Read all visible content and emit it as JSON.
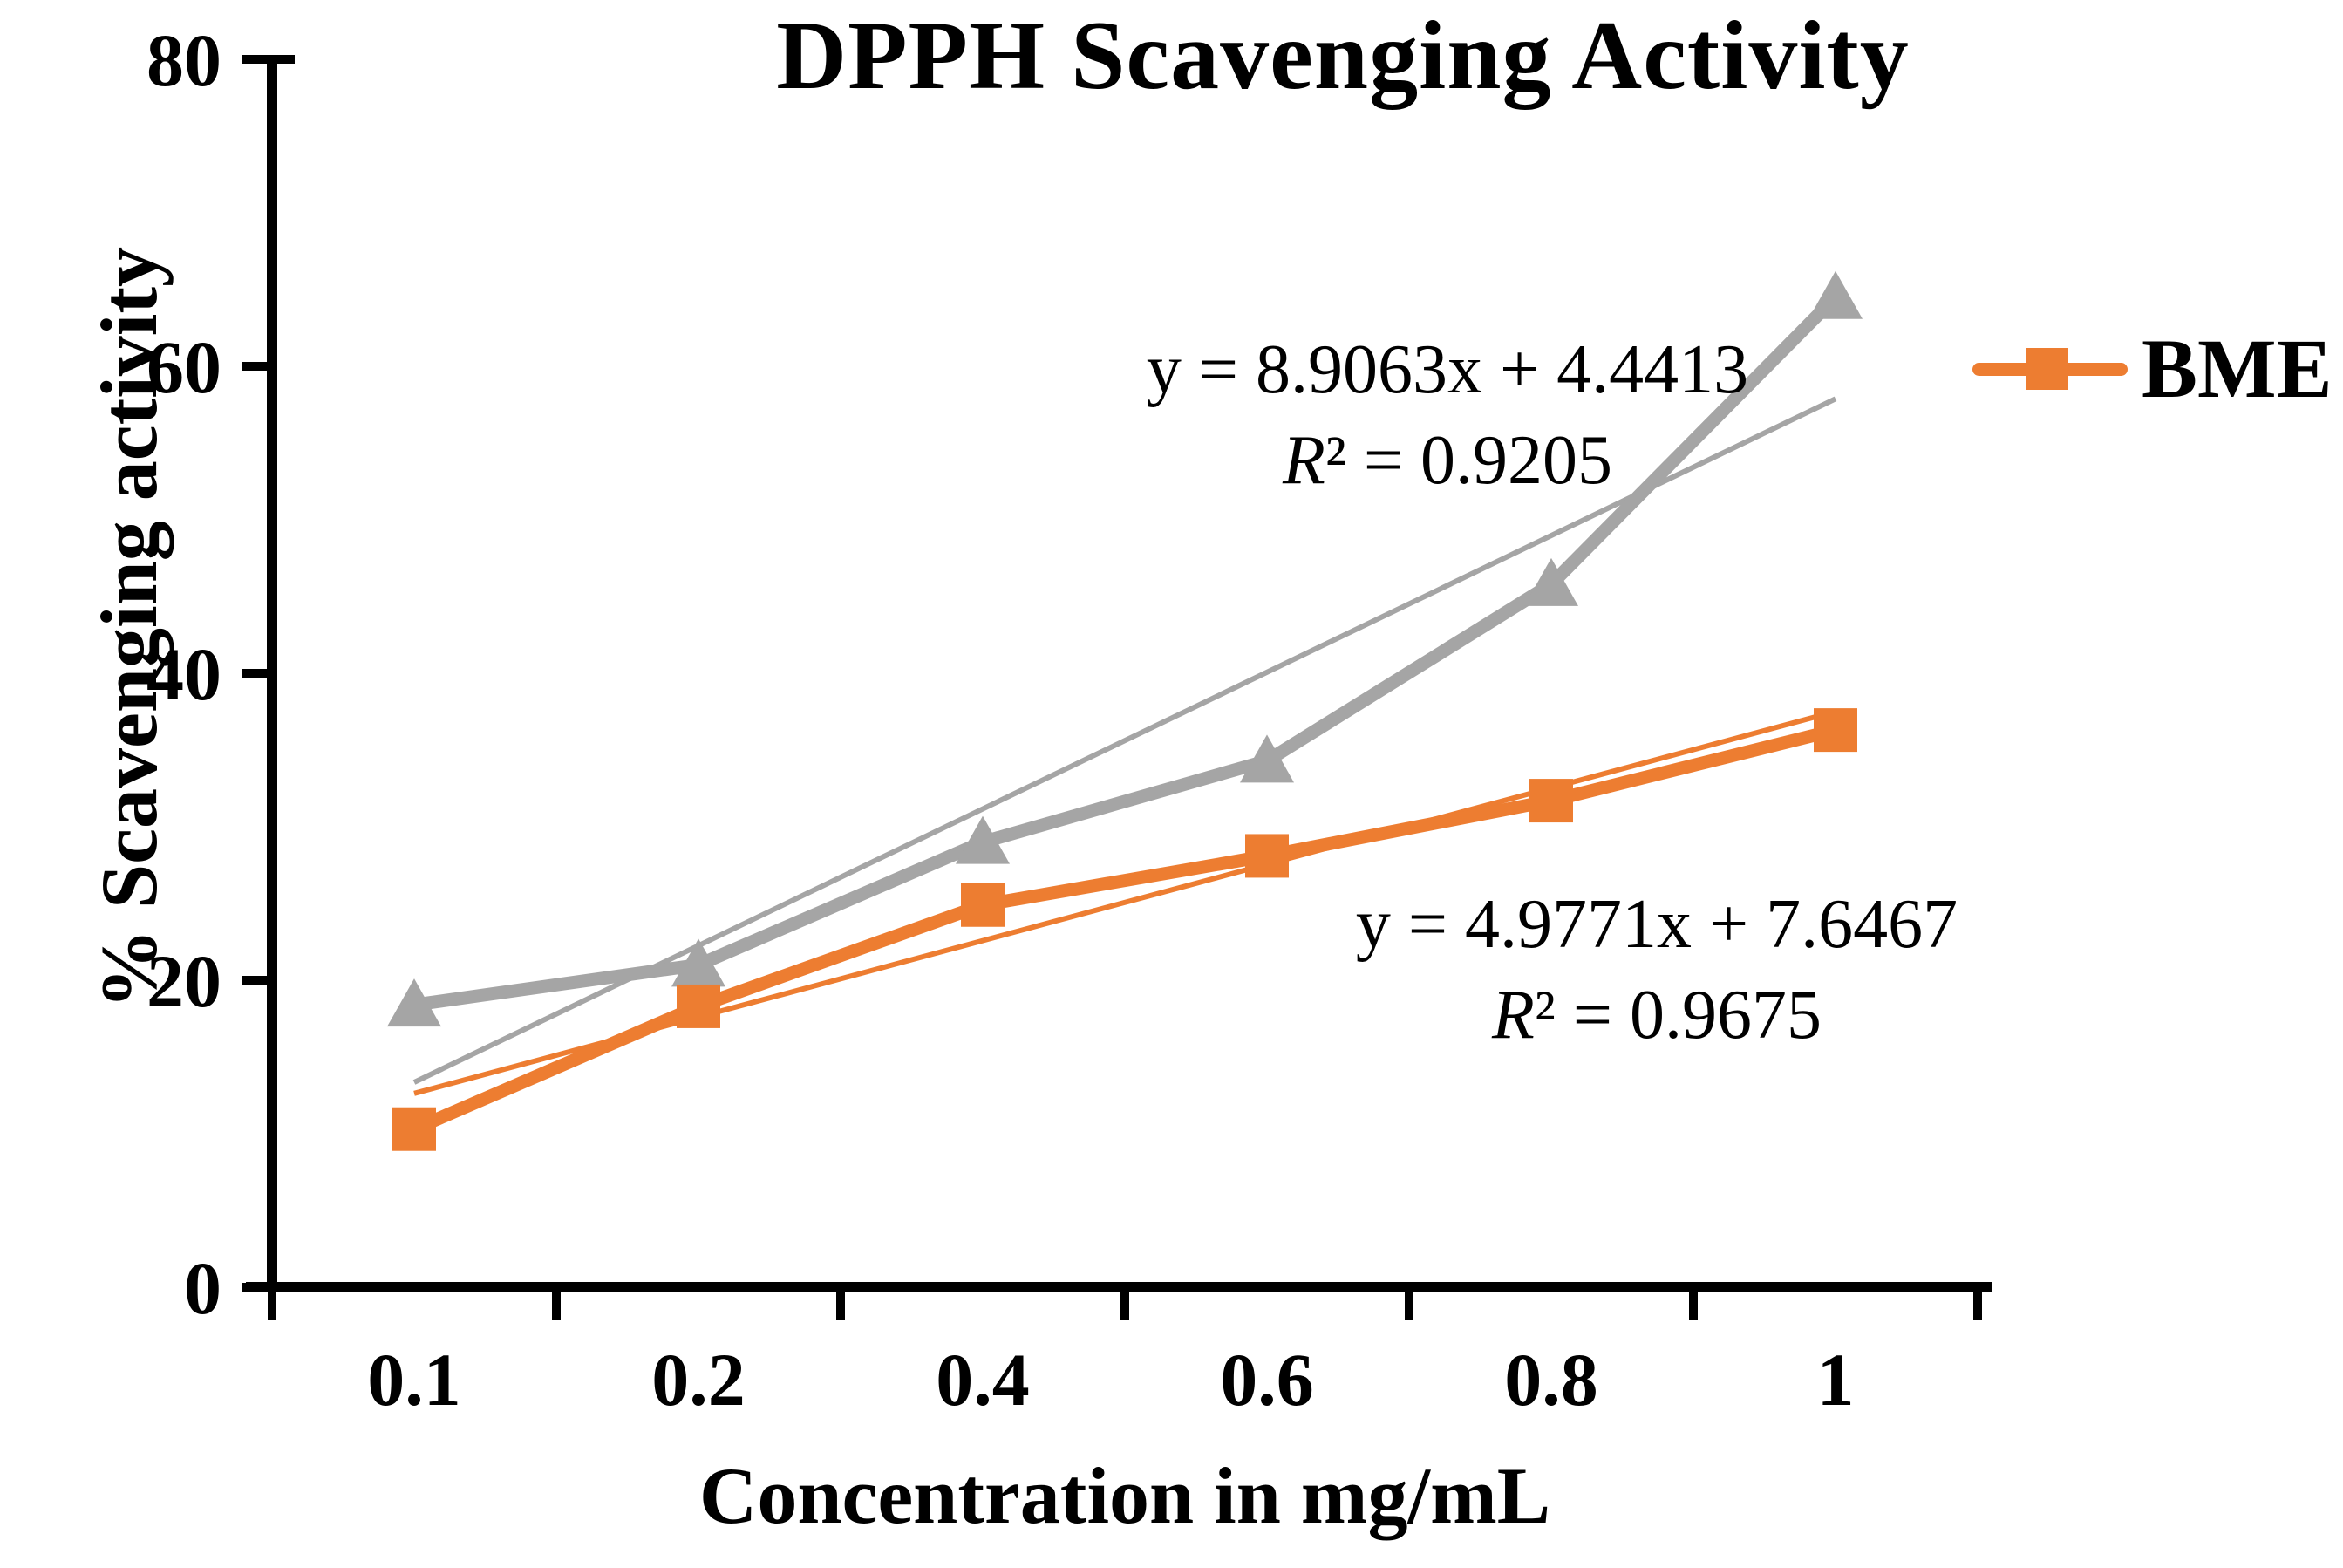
{
  "chart_data": {
    "type": "line",
    "title": "DPPH Scavenging Activity",
    "xlabel": "Concentration in mg/mL",
    "ylabel": "% Scavenging activity",
    "categories": [
      "0.1",
      "0.2",
      "0.4",
      "0.6",
      "0.8",
      "1"
    ],
    "ylim": [
      0,
      80
    ],
    "yticks": [
      0,
      20,
      40,
      60,
      80
    ],
    "ytick_labels": [
      "0",
      "20",
      "40",
      "60",
      "80"
    ],
    "grid": false,
    "legend_position": "right",
    "axis_color": "#000000",
    "series": [
      {
        "name": "",
        "color": "#A5A5A5",
        "marker": "triangle",
        "values": [
          18.4,
          21.0,
          29.0,
          34.3,
          45.8,
          64.5
        ],
        "trendline": {
          "slope": 8.9063,
          "intercept": 4.4413,
          "r2": 0.9205
        }
      },
      {
        "name": "BME",
        "color": "#ED7D31",
        "marker": "square",
        "values": [
          10.3,
          18.3,
          24.9,
          28.1,
          31.7,
          36.3
        ],
        "trendline": {
          "slope": 4.9771,
          "intercept": 7.6467,
          "r2": 0.9675
        }
      }
    ],
    "annotations": {
      "eq_gray": {
        "line1": "y = 8.9063x + 4.4413",
        "line2": "R² = 0.9205"
      },
      "eq_orange": {
        "line1": "y = 4.9771x + 7.6467",
        "line2": "R² = 0.9675"
      }
    },
    "legend": {
      "label": "BME",
      "marker_color": "#ED7D31"
    }
  }
}
